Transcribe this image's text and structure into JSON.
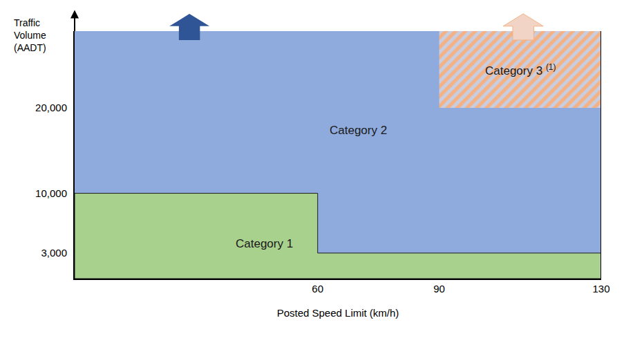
{
  "chart_data": {
    "type": "area",
    "x_label": "Posted Speed Limit (km/h)",
    "y_label": "Traffic Volume (AADT)",
    "xlim": [
      0,
      130
    ],
    "ylim": [
      0,
      29000
    ],
    "xticks": [
      60,
      90,
      130
    ],
    "yticks": [
      {
        "value": 3000,
        "label": "3,000"
      },
      {
        "value": 10000,
        "label": "10,000"
      },
      {
        "value": 20000,
        "label": "20,000"
      }
    ],
    "grid": false,
    "series": [
      {
        "name": "Category 2",
        "color": "#8faadc",
        "x": [
          0,
          0,
          130,
          130,
          60,
          60,
          0
        ],
        "y": [
          10000,
          29000,
          29000,
          3000,
          3000,
          10000,
          10000
        ]
      },
      {
        "name": "Category 1",
        "color": "#a9d18e",
        "x": [
          0,
          0,
          60,
          60,
          130,
          130,
          0
        ],
        "y": [
          0,
          10000,
          10000,
          3000,
          3000,
          0,
          0
        ]
      },
      {
        "name": "Category 3",
        "footnote": "(1)",
        "color": "#f4b183",
        "marker": "hatched",
        "x": [
          90,
          90,
          130,
          130,
          90
        ],
        "y": [
          20000,
          29000,
          29000,
          20000,
          20000
        ]
      }
    ]
  }
}
